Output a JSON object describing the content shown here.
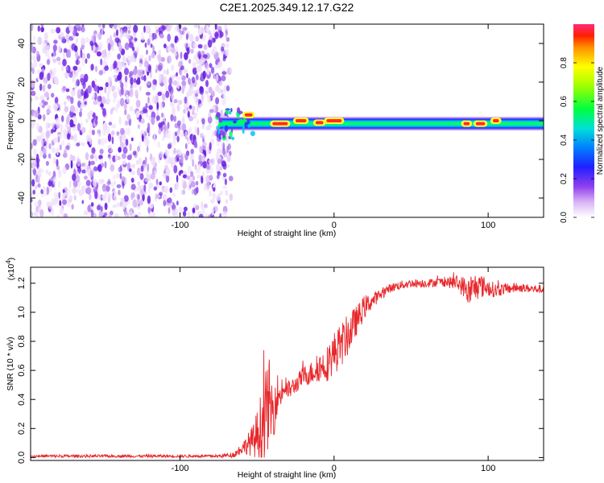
{
  "figure_title": "C2E1.2025.349.12.17.G22",
  "chart_data": [
    {
      "type": "heatmap",
      "title": "C2E1.2025.349.12.17.G22",
      "xlabel": "Height of straight line (km)",
      "ylabel": "Frequency (Hz)",
      "xlim": [
        -197,
        136
      ],
      "ylim": [
        -50,
        50
      ],
      "xticks": [
        -100,
        0,
        100
      ],
      "xtick_labels": [
        "-100",
        "0",
        "100"
      ],
      "yticks": [
        -40,
        -20,
        0,
        20,
        40
      ],
      "ytick_labels": [
        "-40",
        "-20",
        "0",
        "20",
        "40"
      ],
      "noise_region_x": [
        -197,
        -70
      ],
      "signal_line": {
        "frequency_hz": -1.5,
        "x_start": -75,
        "x_end": 136,
        "half_width_hz": 4
      },
      "peak_segments": [
        {
          "x": [
            -58,
            -53
          ],
          "freq": 3
        },
        {
          "x": [
            -40,
            -30
          ],
          "freq": -1.5
        },
        {
          "x": [
            -25,
            -18
          ],
          "freq": 0
        },
        {
          "x": [
            -12,
            -7
          ],
          "freq": -1
        },
        {
          "x": [
            -5,
            5
          ],
          "freq": 0
        },
        {
          "x": [
            84,
            88
          ],
          "freq": -1.5
        },
        {
          "x": [
            92,
            98
          ],
          "freq": -1.5
        },
        {
          "x": [
            103,
            107
          ],
          "freq": 0
        }
      ],
      "colorbar": {
        "label": "Normalized spectral amplitude",
        "range": [
          0.0,
          1.0
        ],
        "ticks": [
          0.0,
          0.2,
          0.4,
          0.6,
          0.8
        ],
        "tick_labels": [
          "0.0",
          "0.2",
          "0.4",
          "0.6",
          "0.8"
        ]
      }
    },
    {
      "type": "line",
      "xlabel": "Height of straight line (km)",
      "ylabel": "SNR (10 * v/v)",
      "y_multiplier": "(x10",
      "y_multiplier_exp": "4",
      "y_multiplier_close": ")",
      "xlim": [
        -197,
        136
      ],
      "ylim": [
        -0.02,
        1.31
      ],
      "xticks": [
        -100,
        0,
        100
      ],
      "xtick_labels": [
        "-100",
        "0",
        "100"
      ],
      "yticks": [
        0.0,
        0.2,
        0.4,
        0.6,
        0.8,
        1.0,
        1.2
      ],
      "ytick_labels": [
        "0.0",
        "0.2",
        "0.4",
        "0.6",
        "0.8",
        "1.0",
        "1.2"
      ],
      "color": "#e8262a",
      "series": [
        {
          "name": "SNR",
          "x": [
            -197,
            -150,
            -100,
            -75,
            -65,
            -58,
            -52,
            -47,
            -44,
            -42,
            -40,
            -37,
            -35,
            -32,
            -30,
            -25,
            -20,
            -15,
            -10,
            -5,
            0,
            5,
            10,
            15,
            20,
            25,
            30,
            35,
            40,
            45,
            50,
            60,
            70,
            80,
            85,
            88,
            92,
            96,
            100,
            105,
            110,
            120,
            130,
            136
          ],
          "y": [
            0.01,
            0.01,
            0.01,
            0.01,
            0.02,
            0.08,
            0.12,
            0.22,
            0.32,
            0.38,
            0.3,
            0.45,
            0.42,
            0.48,
            0.46,
            0.5,
            0.56,
            0.58,
            0.62,
            0.64,
            0.72,
            0.78,
            0.86,
            0.95,
            1.04,
            1.08,
            1.12,
            1.16,
            1.18,
            1.19,
            1.2,
            1.2,
            1.21,
            1.2,
            1.17,
            1.13,
            1.18,
            1.18,
            1.17,
            1.15,
            1.16,
            1.17,
            1.16,
            1.16
          ],
          "noise_amplitude": [
            0.01,
            0.01,
            0.01,
            0.01,
            0.02,
            0.05,
            0.12,
            0.25,
            0.3,
            0.3,
            0.22,
            0.15,
            0.08,
            0.06,
            0.07,
            0.06,
            0.07,
            0.08,
            0.1,
            0.12,
            0.15,
            0.15,
            0.14,
            0.1,
            0.08,
            0.05,
            0.04,
            0.03,
            0.03,
            0.03,
            0.03,
            0.03,
            0.03,
            0.05,
            0.08,
            0.1,
            0.1,
            0.08,
            0.06,
            0.05,
            0.04,
            0.03,
            0.03,
            0.03
          ]
        }
      ]
    }
  ]
}
